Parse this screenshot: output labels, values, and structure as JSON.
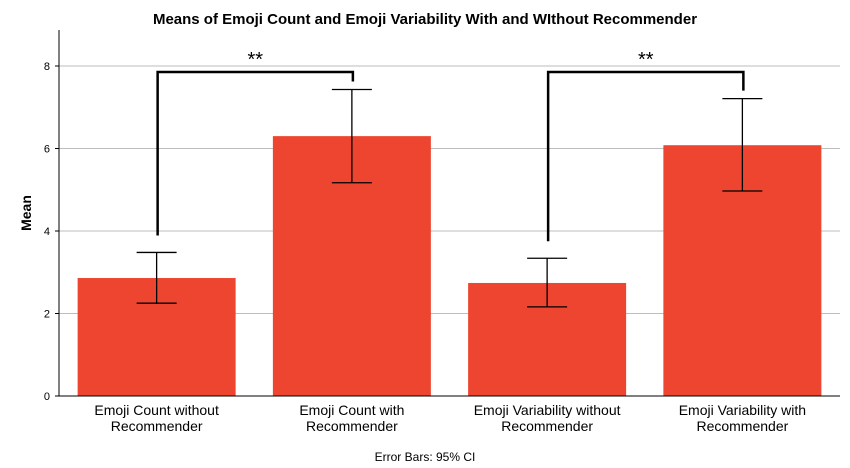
{
  "chart_data": {
    "type": "bar",
    "title": "Means of Emoji Count and Emoji Variability With and WIthout Recommender",
    "ylabel": "Mean",
    "xlabel": "",
    "ylim": [
      0,
      8.8
    ],
    "yticks": [
      0,
      2,
      4,
      6,
      8
    ],
    "grid": true,
    "categories": [
      [
        "Emoji Count without",
        "Recommender"
      ],
      [
        "Emoji Count with",
        "Recommender"
      ],
      [
        "Emoji Variability without",
        "Recommender"
      ],
      [
        "Emoji Variability with",
        "Recommender"
      ]
    ],
    "values": [
      2.86,
      6.3,
      2.74,
      6.08
    ],
    "error_bars": {
      "label": "Error Bars: 95% CI",
      "lower": [
        2.25,
        5.17,
        2.16,
        4.97
      ],
      "upper": [
        3.48,
        7.43,
        3.34,
        7.21
      ]
    },
    "significance": [
      {
        "from": 0,
        "to": 1,
        "label": "**"
      },
      {
        "from": 2,
        "to": 3,
        "label": "**"
      }
    ],
    "bar_color": "#EE4530",
    "grid_color": "#BDBDBD"
  }
}
